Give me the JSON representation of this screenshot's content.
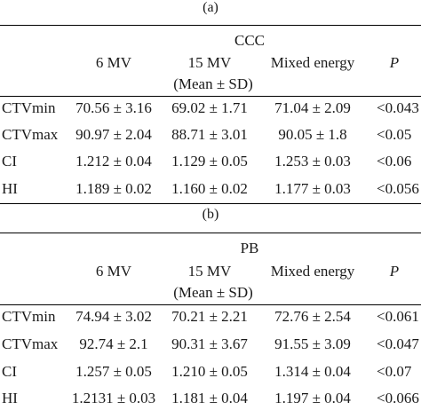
{
  "tables": [
    {
      "label": "(a)",
      "method": "CCC",
      "columns": [
        "6 MV",
        "15 MV",
        "Mixed energy",
        "P"
      ],
      "subheader": "(Mean ± SD)",
      "rows": [
        {
          "name": "CTVmin",
          "mv6": "70.56 ± 3.16",
          "mv15": "69.02 ± 1.71",
          "mixed": "71.04 ± 2.09",
          "p": "<0.043"
        },
        {
          "name": "CTVmax",
          "mv6": "90.97 ± 2.04",
          "mv15": "88.71 ± 3.01",
          "mixed": "90.05 ± 1.8",
          "p": "<0.05"
        },
        {
          "name": "CI",
          "mv6": "1.212 ± 0.04",
          "mv15": "1.129 ± 0.05",
          "mixed": "1.253 ± 0.03",
          "p": "<0.06"
        },
        {
          "name": "HI",
          "mv6": "1.189 ± 0.02",
          "mv15": "1.160 ± 0.02",
          "mixed": "1.177 ± 0.03",
          "p": "<0.056"
        }
      ]
    },
    {
      "label": "(b)",
      "method": "PB",
      "columns": [
        "6 MV",
        "15 MV",
        "Mixed energy",
        "P"
      ],
      "subheader": "(Mean ± SD)",
      "rows": [
        {
          "name": "CTVmin",
          "mv6": "74.94 ± 3.02",
          "mv15": "70.21 ± 2.21",
          "mixed": "72.76 ± 2.54",
          "p": "<0.061"
        },
        {
          "name": "CTVmax",
          "mv6": "92.74 ± 2.1",
          "mv15": "90.31 ± 3.67",
          "mixed": "91.55 ± 3.09",
          "p": "<0.047"
        },
        {
          "name": "CI",
          "mv6": "1.257 ± 0.05",
          "mv15": "1.210 ± 0.05",
          "mixed": "1.314 ± 0.04",
          "p": "<0.07"
        },
        {
          "name": "HI",
          "mv6": "1.2131 ± 0.03",
          "mv15": "1.181 ± 0.04",
          "mixed": "1.197 ± 0.04",
          "p": "<0.066"
        }
      ]
    }
  ]
}
